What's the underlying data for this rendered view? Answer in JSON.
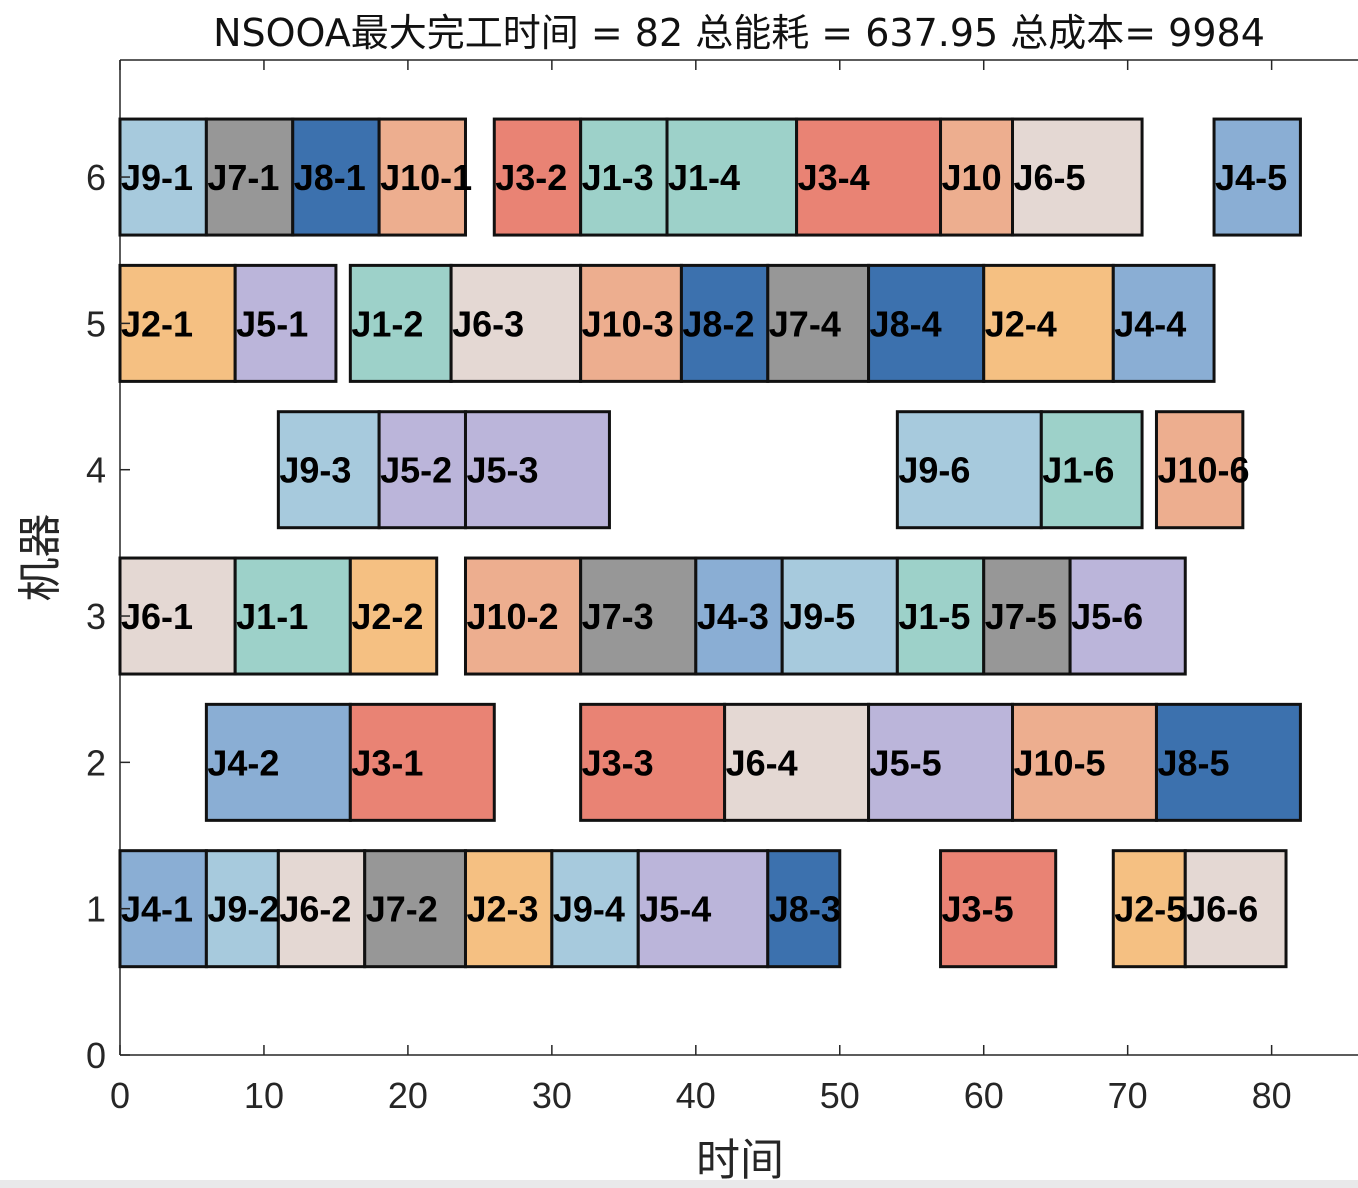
{
  "chart_data": {
    "type": "gantt",
    "title": "NSOOA最大完工时间 = 82 总能耗 = 637.95 总成本= 9984",
    "xlabel": "时间",
    "ylabel": "机器",
    "xlim": [
      0,
      86
    ],
    "ylim": [
      0,
      6.8
    ],
    "xticks": [
      0,
      10,
      20,
      30,
      40,
      50,
      60,
      70,
      80
    ],
    "yticks": [
      0,
      1,
      2,
      3,
      4,
      5,
      6
    ],
    "job_colors": {
      "J1": "#9dd1c9",
      "J2": "#f5c082",
      "J3": "#e98374",
      "J4": "#8aaed4",
      "J5": "#bbb5da",
      "J6": "#e4d8d3",
      "J7": "#979797",
      "J8": "#3c71ae",
      "J9": "#a7cadd",
      "J10": "#edae8f"
    },
    "tasks": [
      {
        "machine": 6,
        "label": "J9-1",
        "job": "J9",
        "start": 0,
        "end": 6
      },
      {
        "machine": 6,
        "label": "J7-1",
        "job": "J7",
        "start": 6,
        "end": 12
      },
      {
        "machine": 6,
        "label": "J8-1",
        "job": "J8",
        "start": 12,
        "end": 18
      },
      {
        "machine": 6,
        "label": "J10-1",
        "job": "J10",
        "start": 18,
        "end": 24
      },
      {
        "machine": 6,
        "label": "J3-2",
        "job": "J3",
        "start": 26,
        "end": 32
      },
      {
        "machine": 6,
        "label": "J1-3",
        "job": "J1",
        "start": 32,
        "end": 38
      },
      {
        "machine": 6,
        "label": "J1-4",
        "job": "J1",
        "start": 38,
        "end": 47
      },
      {
        "machine": 6,
        "label": "J3-4",
        "job": "J3",
        "start": 47,
        "end": 57
      },
      {
        "machine": 6,
        "label": "J10",
        "job": "J10",
        "start": 57,
        "end": 62
      },
      {
        "machine": 6,
        "label": "J6-5",
        "job": "J6",
        "start": 62,
        "end": 71
      },
      {
        "machine": 6,
        "label": "J4-5",
        "job": "J4",
        "start": 76,
        "end": 82
      },
      {
        "machine": 5,
        "label": "J2-1",
        "job": "J2",
        "start": 0,
        "end": 8
      },
      {
        "machine": 5,
        "label": "J5-1",
        "job": "J5",
        "start": 8,
        "end": 15
      },
      {
        "machine": 5,
        "label": "J1-2",
        "job": "J1",
        "start": 16,
        "end": 23
      },
      {
        "machine": 5,
        "label": "J6-3",
        "job": "J6",
        "start": 23,
        "end": 32
      },
      {
        "machine": 5,
        "label": "J10-3",
        "job": "J10",
        "start": 32,
        "end": 39
      },
      {
        "machine": 5,
        "label": "J8-2",
        "job": "J8",
        "start": 39,
        "end": 45
      },
      {
        "machine": 5,
        "label": "J7-4",
        "job": "J7",
        "start": 45,
        "end": 52
      },
      {
        "machine": 5,
        "label": "J8-4",
        "job": "J8",
        "start": 52,
        "end": 60
      },
      {
        "machine": 5,
        "label": "J2-4",
        "job": "J2",
        "start": 60,
        "end": 69
      },
      {
        "machine": 5,
        "label": "J4-4",
        "job": "J4",
        "start": 69,
        "end": 76
      },
      {
        "machine": 4,
        "label": "J9-3",
        "job": "J9",
        "start": 11,
        "end": 18
      },
      {
        "machine": 4,
        "label": "J5-2",
        "job": "J5",
        "start": 18,
        "end": 24
      },
      {
        "machine": 4,
        "label": "J5-3",
        "job": "J5",
        "start": 24,
        "end": 34
      },
      {
        "machine": 4,
        "label": "J9-6",
        "job": "J9",
        "start": 54,
        "end": 64
      },
      {
        "machine": 4,
        "label": "J1-6",
        "job": "J1",
        "start": 64,
        "end": 71
      },
      {
        "machine": 4,
        "label": "J10-6",
        "job": "J10",
        "start": 72,
        "end": 78
      },
      {
        "machine": 3,
        "label": "J6-1",
        "job": "J6",
        "start": 0,
        "end": 8
      },
      {
        "machine": 3,
        "label": "J1-1",
        "job": "J1",
        "start": 8,
        "end": 16
      },
      {
        "machine": 3,
        "label": "J2-2",
        "job": "J2",
        "start": 16,
        "end": 22
      },
      {
        "machine": 3,
        "label": "J10-2",
        "job": "J10",
        "start": 24,
        "end": 32
      },
      {
        "machine": 3,
        "label": "J7-3",
        "job": "J7",
        "start": 32,
        "end": 40
      },
      {
        "machine": 3,
        "label": "J4-3",
        "job": "J4",
        "start": 40,
        "end": 46
      },
      {
        "machine": 3,
        "label": "J9-5",
        "job": "J9",
        "start": 46,
        "end": 54
      },
      {
        "machine": 3,
        "label": "J1-5",
        "job": "J1",
        "start": 54,
        "end": 60
      },
      {
        "machine": 3,
        "label": "J7-5",
        "job": "J7",
        "start": 60,
        "end": 66
      },
      {
        "machine": 3,
        "label": "J5-6",
        "job": "J5",
        "start": 66,
        "end": 74
      },
      {
        "machine": 2,
        "label": "J4-2",
        "job": "J4",
        "start": 6,
        "end": 16
      },
      {
        "machine": 2,
        "label": "J3-1",
        "job": "J3",
        "start": 16,
        "end": 26
      },
      {
        "machine": 2,
        "label": "J3-3",
        "job": "J3",
        "start": 32,
        "end": 42
      },
      {
        "machine": 2,
        "label": "J6-4",
        "job": "J6",
        "start": 42,
        "end": 52
      },
      {
        "machine": 2,
        "label": "J5-5",
        "job": "J5",
        "start": 52,
        "end": 62
      },
      {
        "machine": 2,
        "label": "J10-5",
        "job": "J10",
        "start": 62,
        "end": 72
      },
      {
        "machine": 2,
        "label": "J8-5",
        "job": "J8",
        "start": 72,
        "end": 82
      },
      {
        "machine": 1,
        "label": "J4-1",
        "job": "J4",
        "start": 0,
        "end": 6
      },
      {
        "machine": 1,
        "label": "J9-2",
        "job": "J9",
        "start": 6,
        "end": 11
      },
      {
        "machine": 1,
        "label": "J6-2",
        "job": "J6",
        "start": 11,
        "end": 17
      },
      {
        "machine": 1,
        "label": "J7-2",
        "job": "J7",
        "start": 17,
        "end": 24
      },
      {
        "machine": 1,
        "label": "J2-3",
        "job": "J2",
        "start": 24,
        "end": 30
      },
      {
        "machine": 1,
        "label": "J9-4",
        "job": "J9",
        "start": 30,
        "end": 36
      },
      {
        "machine": 1,
        "label": "J5-4",
        "job": "J5",
        "start": 36,
        "end": 45
      },
      {
        "machine": 1,
        "label": "J8-3",
        "job": "J8",
        "start": 45,
        "end": 50
      },
      {
        "machine": 1,
        "label": "J3-5",
        "job": "J3",
        "start": 57,
        "end": 65
      },
      {
        "machine": 1,
        "label": "J2-5",
        "job": "J2",
        "start": 69,
        "end": 74
      },
      {
        "machine": 1,
        "label": "J6-6",
        "job": "J6",
        "start": 74,
        "end": 81
      }
    ]
  }
}
